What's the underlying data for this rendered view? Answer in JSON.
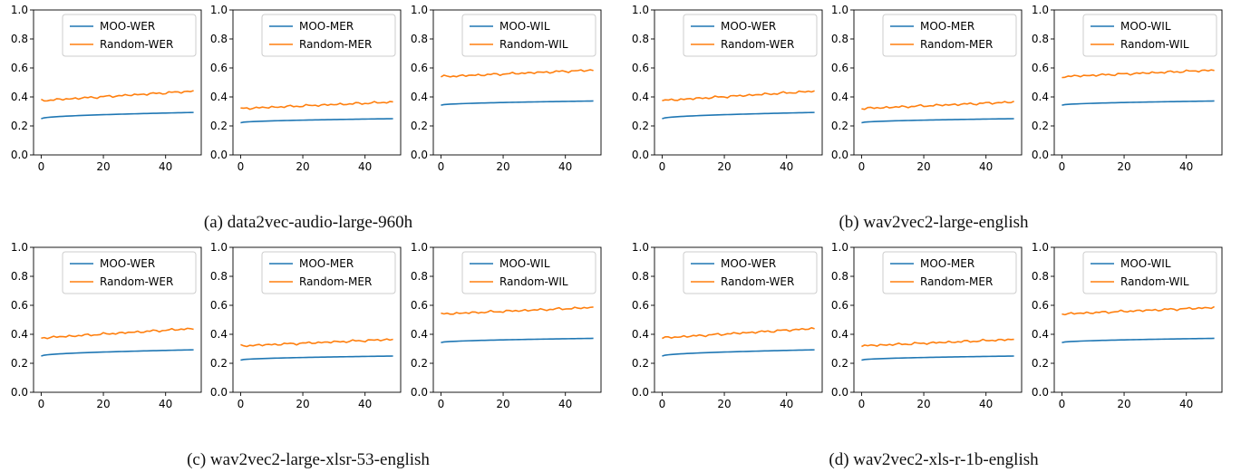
{
  "captions": [
    "(a) data2vec-audio-large-960h",
    "(b) wav2vec2-large-english",
    "(c) wav2vec2-large-xlsr-53-english",
    "(d) wav2vec2-xls-r-1b-english"
  ],
  "colors": {
    "moo": "#1f77b4",
    "random": "#ff7f0e"
  },
  "chart_data": [
    {
      "type": "line",
      "group": "a",
      "xlim": [
        0,
        49
      ],
      "ylim": [
        0,
        1
      ],
      "xticks": [
        0,
        20,
        40
      ],
      "yticks": [
        "0.0",
        "0.2",
        "0.4",
        "0.6",
        "0.8",
        "1.0"
      ],
      "legend": "top-right",
      "series": [
        {
          "name": "MOO-WER",
          "start": 0.25,
          "end": 0.293
        },
        {
          "name": "Random-WER",
          "start": 0.375,
          "end": 0.44
        }
      ]
    },
    {
      "type": "line",
      "group": "a",
      "xlim": [
        0,
        49
      ],
      "ylim": [
        0,
        1
      ],
      "xticks": [
        0,
        20,
        40
      ],
      "yticks": [
        "0.0",
        "0.2",
        "0.4",
        "0.6",
        "0.8",
        "1.0"
      ],
      "legend": "top-right",
      "series": [
        {
          "name": "MOO-MER",
          "start": 0.222,
          "end": 0.25
        },
        {
          "name": "Random-MER",
          "start": 0.32,
          "end": 0.365
        }
      ]
    },
    {
      "type": "line",
      "group": "a",
      "xlim": [
        0,
        49
      ],
      "ylim": [
        0,
        1
      ],
      "xticks": [
        0,
        20,
        40
      ],
      "yticks": [
        "0.0",
        "0.2",
        "0.4",
        "0.6",
        "0.8",
        "1.0"
      ],
      "legend": "top-right",
      "series": [
        {
          "name": "MOO-WIL",
          "start": 0.343,
          "end": 0.372
        },
        {
          "name": "Random-WIL",
          "start": 0.54,
          "end": 0.585
        }
      ]
    },
    {
      "type": "line",
      "group": "b",
      "xlim": [
        0,
        49
      ],
      "ylim": [
        0,
        1
      ],
      "xticks": [
        0,
        20,
        40
      ],
      "yticks": [
        "0.0",
        "0.2",
        "0.4",
        "0.6",
        "0.8",
        "1.0"
      ],
      "legend": "top-right",
      "series": [
        {
          "name": "MOO-WER",
          "start": 0.25,
          "end": 0.293
        },
        {
          "name": "Random-WER",
          "start": 0.375,
          "end": 0.44
        }
      ]
    },
    {
      "type": "line",
      "group": "b",
      "xlim": [
        0,
        49
      ],
      "ylim": [
        0,
        1
      ],
      "xticks": [
        0,
        20,
        40
      ],
      "yticks": [
        "0.0",
        "0.2",
        "0.4",
        "0.6",
        "0.8",
        "1.0"
      ],
      "legend": "top-right",
      "series": [
        {
          "name": "MOO-MER",
          "start": 0.222,
          "end": 0.25
        },
        {
          "name": "Random-MER",
          "start": 0.32,
          "end": 0.365
        }
      ]
    },
    {
      "type": "line",
      "group": "b",
      "xlim": [
        0,
        49
      ],
      "ylim": [
        0,
        1
      ],
      "xticks": [
        0,
        20,
        40
      ],
      "yticks": [
        "0.0",
        "0.2",
        "0.4",
        "0.6",
        "0.8",
        "1.0"
      ],
      "legend": "top-right",
      "series": [
        {
          "name": "MOO-WIL",
          "start": 0.343,
          "end": 0.372
        },
        {
          "name": "Random-WIL",
          "start": 0.54,
          "end": 0.585
        }
      ]
    },
    {
      "type": "line",
      "group": "c",
      "xlim": [
        0,
        49
      ],
      "ylim": [
        0,
        1
      ],
      "xticks": [
        0,
        20,
        40
      ],
      "yticks": [
        "0.0",
        "0.2",
        "0.4",
        "0.6",
        "0.8",
        "1.0"
      ],
      "legend": "top-right",
      "series": [
        {
          "name": "MOO-WER",
          "start": 0.25,
          "end": 0.293
        },
        {
          "name": "Random-WER",
          "start": 0.375,
          "end": 0.44
        }
      ]
    },
    {
      "type": "line",
      "group": "c",
      "xlim": [
        0,
        49
      ],
      "ylim": [
        0,
        1
      ],
      "xticks": [
        0,
        20,
        40
      ],
      "yticks": [
        "0.0",
        "0.2",
        "0.4",
        "0.6",
        "0.8",
        "1.0"
      ],
      "legend": "top-right",
      "series": [
        {
          "name": "MOO-MER",
          "start": 0.222,
          "end": 0.25
        },
        {
          "name": "Random-MER",
          "start": 0.32,
          "end": 0.365
        }
      ]
    },
    {
      "type": "line",
      "group": "c",
      "xlim": [
        0,
        49
      ],
      "ylim": [
        0,
        1
      ],
      "xticks": [
        0,
        20,
        40
      ],
      "yticks": [
        "0.0",
        "0.2",
        "0.4",
        "0.6",
        "0.8",
        "1.0"
      ],
      "legend": "top-right",
      "series": [
        {
          "name": "MOO-WIL",
          "start": 0.343,
          "end": 0.372
        },
        {
          "name": "Random-WIL",
          "start": 0.54,
          "end": 0.585
        }
      ]
    },
    {
      "type": "line",
      "group": "d",
      "xlim": [
        0,
        49
      ],
      "ylim": [
        0,
        1
      ],
      "xticks": [
        0,
        20,
        40
      ],
      "yticks": [
        "0.0",
        "0.2",
        "0.4",
        "0.6",
        "0.8",
        "1.0"
      ],
      "legend": "top-right",
      "series": [
        {
          "name": "MOO-WER",
          "start": 0.25,
          "end": 0.293
        },
        {
          "name": "Random-WER",
          "start": 0.375,
          "end": 0.44
        }
      ]
    },
    {
      "type": "line",
      "group": "d",
      "xlim": [
        0,
        49
      ],
      "ylim": [
        0,
        1
      ],
      "xticks": [
        0,
        20,
        40
      ],
      "yticks": [
        "0.0",
        "0.2",
        "0.4",
        "0.6",
        "0.8",
        "1.0"
      ],
      "legend": "top-right",
      "series": [
        {
          "name": "MOO-MER",
          "start": 0.222,
          "end": 0.25
        },
        {
          "name": "Random-MER",
          "start": 0.32,
          "end": 0.365
        }
      ]
    },
    {
      "type": "line",
      "group": "d",
      "xlim": [
        0,
        49
      ],
      "ylim": [
        0,
        1
      ],
      "xticks": [
        0,
        20,
        40
      ],
      "yticks": [
        "0.0",
        "0.2",
        "0.4",
        "0.6",
        "0.8",
        "1.0"
      ],
      "legend": "top-right",
      "series": [
        {
          "name": "MOO-WIL",
          "start": 0.343,
          "end": 0.372
        },
        {
          "name": "Random-WIL",
          "start": 0.54,
          "end": 0.585
        }
      ]
    }
  ]
}
